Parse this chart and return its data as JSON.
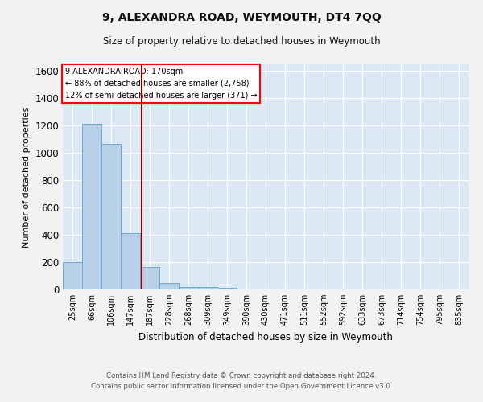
{
  "title": "9, ALEXANDRA ROAD, WEYMOUTH, DT4 7QQ",
  "subtitle": "Size of property relative to detached houses in Weymouth",
  "xlabel": "Distribution of detached houses by size in Weymouth",
  "ylabel": "Number of detached properties",
  "footer_line1": "Contains HM Land Registry data © Crown copyright and database right 2024.",
  "footer_line2": "Contains public sector information licensed under the Open Government Licence v3.0.",
  "categories": [
    "25sqm",
    "66sqm",
    "106sqm",
    "147sqm",
    "187sqm",
    "228sqm",
    "268sqm",
    "309sqm",
    "349sqm",
    "390sqm",
    "430sqm",
    "471sqm",
    "511sqm",
    "552sqm",
    "592sqm",
    "633sqm",
    "673sqm",
    "714sqm",
    "754sqm",
    "795sqm",
    "835sqm"
  ],
  "values": [
    200,
    1215,
    1065,
    410,
    165,
    45,
    20,
    15,
    10,
    0,
    0,
    0,
    0,
    0,
    0,
    0,
    0,
    0,
    0,
    0,
    0
  ],
  "bar_color": "#b8d0e8",
  "bar_edge_color": "#6aaad4",
  "red_line_x": 3.575,
  "ylim": [
    0,
    1650
  ],
  "yticks": [
    0,
    200,
    400,
    600,
    800,
    1000,
    1200,
    1400,
    1600
  ],
  "annotation_text_line1": "9 ALEXANDRA ROAD: 170sqm",
  "annotation_text_line2": "← 88% of detached houses are smaller (2,758)",
  "annotation_text_line3": "12% of semi-detached houses are larger (371) →",
  "plot_bg_color": "#dce9f5",
  "grid_color": "#ffffff",
  "fig_bg_color": "#f2f2f2"
}
